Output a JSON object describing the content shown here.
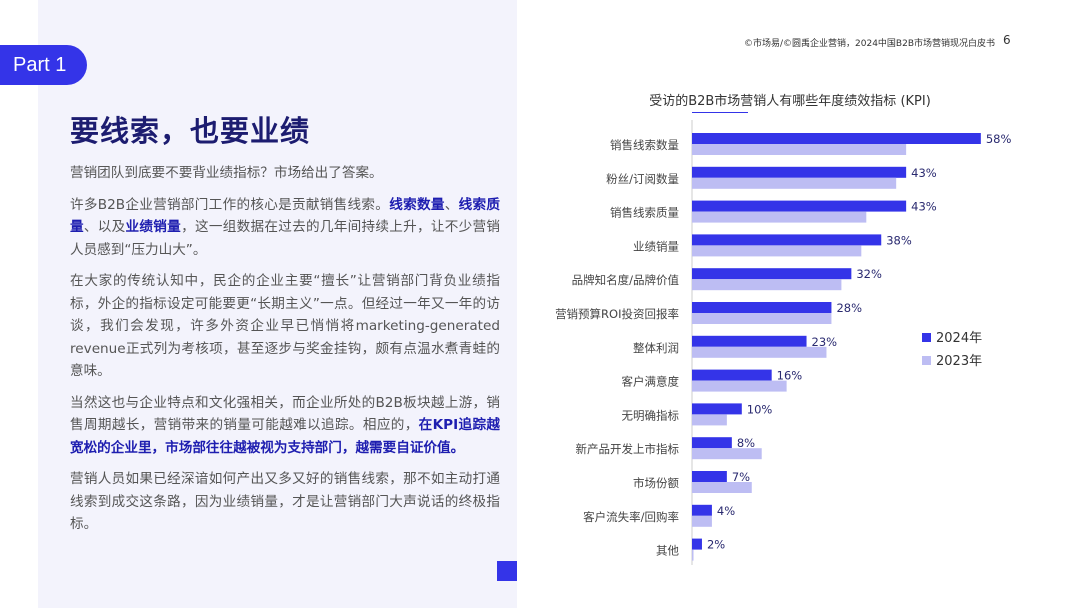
{
  "header": {
    "source": "©市场易/©圆禹企业营销，2024中国B2B市场营销现况白皮书",
    "page": "6"
  },
  "part_label": "Part 1",
  "title": "要线索，也要业绩",
  "paragraphs": [
    [
      {
        "t": "营销团队到底要不要背业绩指标？市场给出了答案。",
        "b": false
      }
    ],
    [
      {
        "t": "许多B2B企业营销部门工作的核心是贡献销售线索。",
        "b": false
      },
      {
        "t": "线索数量",
        "b": true
      },
      {
        "t": "、",
        "b": false
      },
      {
        "t": "线索质量",
        "b": true
      },
      {
        "t": "、以及",
        "b": false
      },
      {
        "t": "业绩销量",
        "b": true
      },
      {
        "t": "，这一组数据在过去的几年间持续上升，让不少营销人员感到“压力山大”。",
        "b": false
      }
    ],
    [
      {
        "t": "在大家的传统认知中，民企的企业主要“擅长”让营销部门背负业绩指标，外企的指标设定可能要更“长期主义”一点。但经过一年又一年的访谈，我们会发现，许多外资企业早已悄悄将marketing-generated revenue正式列为考核项，甚至逐步与奖金挂钩，颇有点温水煮青蛙的意味。",
        "b": false
      }
    ],
    [
      {
        "t": "当然这也与企业特点和文化强相关，而企业所处的B2B板块越上游，销售周期越长，营销带来的销量可能越难以追踪。相应的，",
        "b": false
      },
      {
        "t": "在KPI追踪越宽松的企业里，市场部往往越被视为支持部门，越需要自证价值。",
        "b": true
      }
    ],
    [
      {
        "t": "营销人员如果已经深谙如何产出又多又好的销售线索，那不如主动打通线索到成交这条路，因为业绩销量，才是让营销部门大声说话的终极指标。",
        "b": false
      }
    ]
  ],
  "chart_data": {
    "type": "bar",
    "orientation": "horizontal",
    "title": "受访的B2B市场营销人有哪些年度绩效指标 (KPI)",
    "categories": [
      "销售线索数量",
      "粉丝/订阅数量",
      "销售线索质量",
      "业绩销量",
      "品牌知名度/品牌价值",
      "营销预算ROI投资回报率",
      "整体利润",
      "客户满意度",
      "无明确指标",
      "新产品开发上市指标",
      "市场份额",
      "客户流失率/回购率",
      "其他"
    ],
    "series": [
      {
        "name": "2024年",
        "color": "#3434e8",
        "values": [
          58,
          43,
          43,
          38,
          32,
          28,
          23,
          16,
          10,
          8,
          7,
          4,
          2
        ],
        "labels": [
          "58%",
          "43%",
          "43%",
          "38%",
          "32%",
          "28%",
          "23%",
          "16%",
          "10%",
          "8%",
          "7%",
          "4%",
          "2%"
        ]
      },
      {
        "name": "2023年",
        "color": "#bdbdf3",
        "values": [
          43,
          41,
          35,
          34,
          30,
          28,
          27,
          19,
          7,
          14,
          12,
          4,
          0.3
        ]
      }
    ],
    "legend": "right",
    "grid": false,
    "unit": "%"
  }
}
